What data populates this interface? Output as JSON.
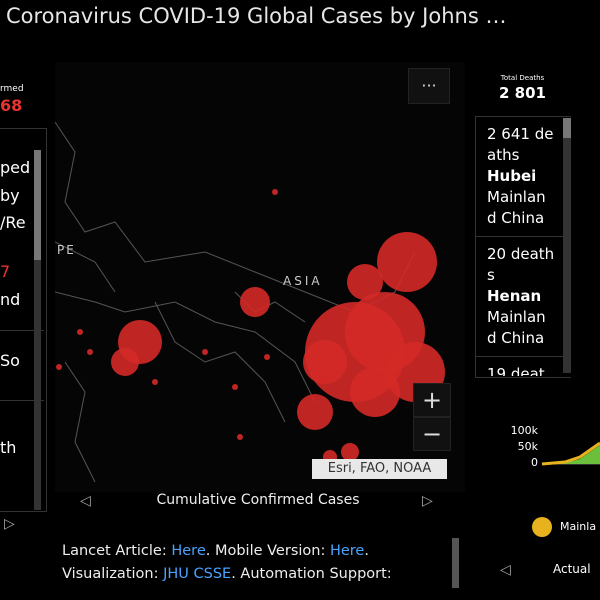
{
  "header": {
    "title": "Coronavirus COVID-19 Global Cases by Johns …"
  },
  "left_panel": {
    "heading": "rmed",
    "total": "68",
    "items": [
      "ped",
      "by",
      "/Re",
      "7",
      "nd",
      "So",
      "th"
    ]
  },
  "map": {
    "labels": [
      "PE",
      "ASIA"
    ],
    "menu": "···",
    "zoom_in": "+",
    "zoom_out": "−",
    "attribution": "Esri, FAO, NOAA",
    "caption": "Cumulative Confirmed Cases"
  },
  "right_panel": {
    "heading": "Total Deaths",
    "total": "2 801",
    "entries": [
      {
        "count": "2 641 deaths",
        "region": "Hubei",
        "country": "Mainland China"
      },
      {
        "count": "20 deaths",
        "region": "Henan",
        "country": "Mainland China"
      },
      {
        "count": "19 deat"
      }
    ]
  },
  "mini_chart": {
    "yticks": [
      "100k",
      "50k",
      "0"
    ],
    "legend": [
      "Mainla",
      "Actual"
    ]
  },
  "footer": {
    "line1": [
      "Lancet Article: ",
      "Here",
      ". Mobile Version: ",
      "Here",
      "."
    ],
    "line2": [
      "Visualization: ",
      "JHU CSSE",
      ". Automation Support:"
    ]
  }
}
